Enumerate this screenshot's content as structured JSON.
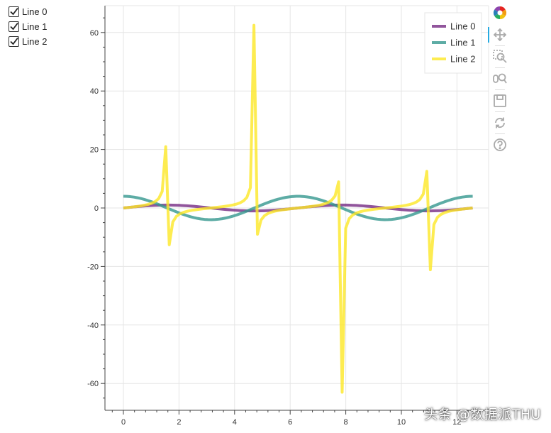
{
  "checkboxes": [
    {
      "label": "Line 0",
      "checked": true
    },
    {
      "label": "Line 1",
      "checked": true
    },
    {
      "label": "Line 2",
      "checked": true
    }
  ],
  "toolbar": {
    "tools": [
      {
        "name": "bokeh-logo-icon",
        "interactable": true
      },
      {
        "name": "pan-tool-icon",
        "interactable": true,
        "active": true
      },
      {
        "name": "box-zoom-tool-icon",
        "interactable": true
      },
      {
        "name": "wheel-zoom-tool-icon",
        "interactable": true
      },
      {
        "name": "save-tool-icon",
        "interactable": true
      },
      {
        "name": "reset-tool-icon",
        "interactable": true
      },
      {
        "name": "help-tool-icon",
        "interactable": true
      }
    ]
  },
  "watermark": "头条 @数据派THU",
  "colors": {
    "line0": "#762a83",
    "line1": "#35978f",
    "line2": "#fde725",
    "grid": "#e5e5e5",
    "axis": "#444444"
  },
  "chart_data": {
    "type": "line",
    "title": "",
    "xlabel": "",
    "ylabel": "",
    "xlim": [
      -0.65,
      13.1
    ],
    "ylim": [
      -69,
      69
    ],
    "x_ticks": [
      0,
      2,
      4,
      6,
      8,
      10,
      12
    ],
    "y_ticks": [
      -60,
      -40,
      -20,
      0,
      20,
      40,
      60
    ],
    "x_tick_labels": [
      "0",
      "2",
      "4",
      "6",
      "8",
      "10",
      "12"
    ],
    "y_tick_labels": [
      "-60",
      "-40",
      "-20",
      "0",
      "20",
      "40",
      "60"
    ],
    "grid": true,
    "legend_position": "top-right",
    "series": [
      {
        "name": "Line 0",
        "function": "sin(x)",
        "color": "#762a83",
        "alpha": 0.8,
        "line_width": 4
      },
      {
        "name": "Line 1",
        "function": "4*cos(x)",
        "color": "#35978f",
        "alpha": 0.8,
        "line_width": 4
      },
      {
        "name": "Line 2",
        "function": "tan(x)",
        "color": "#fde725",
        "alpha": 0.8,
        "line_width": 4
      }
    ],
    "x_range": [
      0,
      12.566
    ],
    "n_points": 100,
    "y_clip": 63
  }
}
